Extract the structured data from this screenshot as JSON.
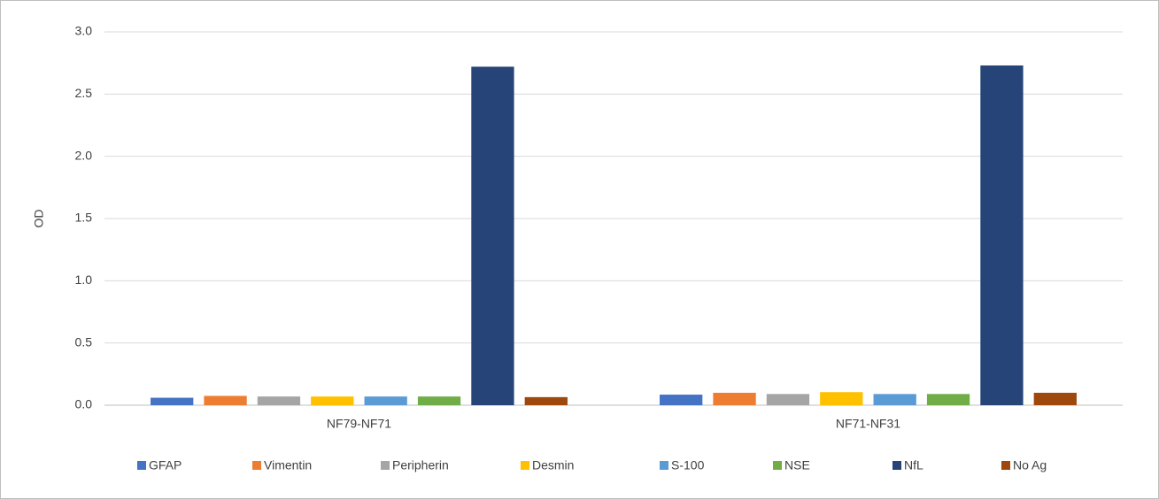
{
  "chart_data": {
    "type": "bar",
    "y_label": "OD",
    "categories": [
      "NF79-NF71",
      "NF71-NF31"
    ],
    "series": [
      {
        "name": "GFAP",
        "color": "#4472c4",
        "values": [
          0.06,
          0.085
        ]
      },
      {
        "name": "Vimentin",
        "color": "#ed7d31",
        "values": [
          0.075,
          0.1
        ]
      },
      {
        "name": "Peripherin",
        "color": "#a5a5a5",
        "values": [
          0.07,
          0.09
        ]
      },
      {
        "name": "Desmin",
        "color": "#ffc000",
        "values": [
          0.07,
          0.105
        ]
      },
      {
        "name": "S-100",
        "color": "#5b9bd5",
        "values": [
          0.07,
          0.09
        ]
      },
      {
        "name": "NSE",
        "color": "#70ad47",
        "values": [
          0.07,
          0.09
        ]
      },
      {
        "name": "NfL",
        "color": "#264478",
        "values": [
          2.72,
          2.73
        ]
      },
      {
        "name": "No Ag",
        "color": "#9e480e",
        "values": [
          0.065,
          0.1
        ]
      }
    ],
    "ylim": [
      0,
      3
    ],
    "yticks": [
      {
        "value": 0,
        "label": "0.0"
      },
      0.5,
      {
        "value": 1,
        "label": "1.0"
      },
      1.5,
      {
        "value": 2,
        "label": "2.0"
      },
      2.5,
      {
        "value": 3,
        "label": "3.0"
      }
    ],
    "grid": true,
    "legend": "bottom"
  }
}
